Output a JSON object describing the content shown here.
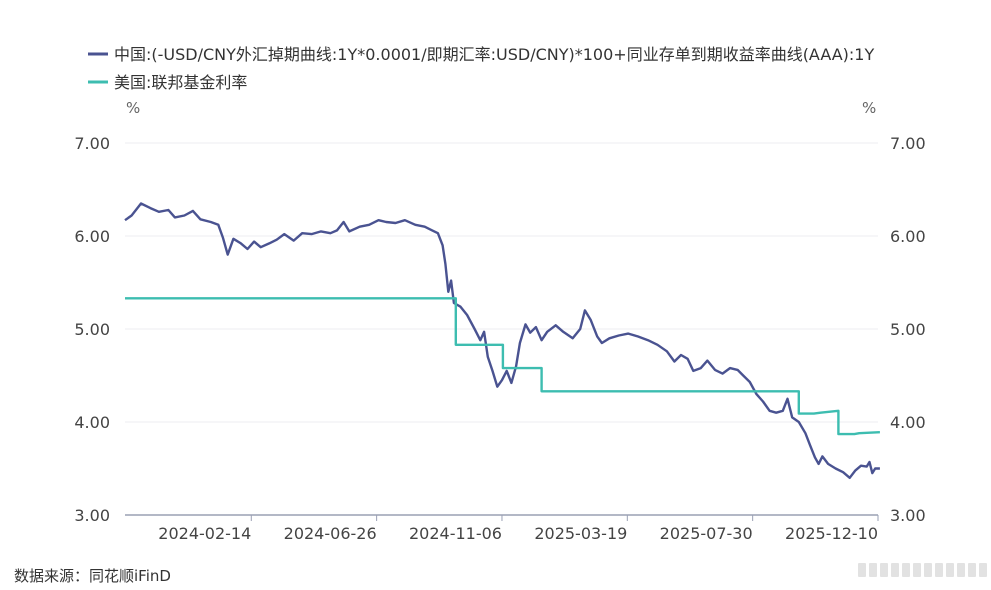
{
  "chart_data": {
    "type": "line",
    "legend_position": "top-left",
    "grid": true,
    "left_unit": "%",
    "right_unit": "%",
    "ylim": [
      3.0,
      7.0
    ],
    "yticks": [
      "3.00",
      "4.00",
      "5.00",
      "6.00",
      "7.00"
    ],
    "x_range": [
      "2023-10-03",
      "2025-12-10"
    ],
    "xticks": [
      "2024-02-14",
      "2024-06-26",
      "2024-11-06",
      "2025-03-19",
      "2025-07-30",
      "2025-12-10"
    ],
    "series": [
      {
        "name": "中国:(-USD/CNY外汇掉期曲线:1Y*0.0001/即期汇率:USD/CNY)*100+同业存单到期收益率曲线(AAA):1Y",
        "color": "#4a5391",
        "points": [
          [
            "2023-10-03",
            6.17
          ],
          [
            "2023-10-10",
            6.22
          ],
          [
            "2023-10-20",
            6.35
          ],
          [
            "2023-10-30",
            6.3
          ],
          [
            "2023-11-08",
            6.26
          ],
          [
            "2023-11-18",
            6.28
          ],
          [
            "2023-11-25",
            6.2
          ],
          [
            "2023-12-05",
            6.22
          ],
          [
            "2023-12-14",
            6.27
          ],
          [
            "2023-12-22",
            6.18
          ],
          [
            "2024-01-02",
            6.15
          ],
          [
            "2024-01-10",
            6.12
          ],
          [
            "2024-01-15",
            5.98
          ],
          [
            "2024-01-20",
            5.8
          ],
          [
            "2024-01-26",
            5.97
          ],
          [
            "2024-02-03",
            5.92
          ],
          [
            "2024-02-10",
            5.86
          ],
          [
            "2024-02-17",
            5.94
          ],
          [
            "2024-02-24",
            5.88
          ],
          [
            "2024-03-04",
            5.92
          ],
          [
            "2024-03-12",
            5.96
          ],
          [
            "2024-03-20",
            6.02
          ],
          [
            "2024-03-30",
            5.95
          ],
          [
            "2024-04-08",
            6.03
          ],
          [
            "2024-04-18",
            6.02
          ],
          [
            "2024-04-28",
            6.05
          ],
          [
            "2024-05-08",
            6.03
          ],
          [
            "2024-05-15",
            6.06
          ],
          [
            "2024-05-22",
            6.15
          ],
          [
            "2024-05-28",
            6.05
          ],
          [
            "2024-06-08",
            6.1
          ],
          [
            "2024-06-18",
            6.12
          ],
          [
            "2024-06-28",
            6.17
          ],
          [
            "2024-07-06",
            6.15
          ],
          [
            "2024-07-16",
            6.14
          ],
          [
            "2024-07-26",
            6.17
          ],
          [
            "2024-08-06",
            6.12
          ],
          [
            "2024-08-16",
            6.1
          ],
          [
            "2024-08-24",
            6.06
          ],
          [
            "2024-08-30",
            6.03
          ],
          [
            "2024-09-04",
            5.9
          ],
          [
            "2024-09-07",
            5.7
          ],
          [
            "2024-09-10",
            5.4
          ],
          [
            "2024-09-13",
            5.52
          ],
          [
            "2024-09-16",
            5.28
          ],
          [
            "2024-09-23",
            5.24
          ],
          [
            "2024-09-30",
            5.15
          ],
          [
            "2024-10-08",
            5.0
          ],
          [
            "2024-10-14",
            4.88
          ],
          [
            "2024-10-18",
            4.97
          ],
          [
            "2024-10-22",
            4.7
          ],
          [
            "2024-10-27",
            4.55
          ],
          [
            "2024-11-01",
            4.38
          ],
          [
            "2024-11-06",
            4.45
          ],
          [
            "2024-11-11",
            4.55
          ],
          [
            "2024-11-16",
            4.42
          ],
          [
            "2024-11-21",
            4.6
          ],
          [
            "2024-11-25",
            4.85
          ],
          [
            "2024-12-01",
            5.05
          ],
          [
            "2024-12-06",
            4.96
          ],
          [
            "2024-12-12",
            5.02
          ],
          [
            "2024-12-18",
            4.88
          ],
          [
            "2024-12-24",
            4.97
          ],
          [
            "2025-01-02",
            5.04
          ],
          [
            "2025-01-10",
            4.97
          ],
          [
            "2025-01-20",
            4.9
          ],
          [
            "2025-01-28",
            5.0
          ],
          [
            "2025-02-02",
            5.2
          ],
          [
            "2025-02-08",
            5.1
          ],
          [
            "2025-02-15",
            4.92
          ],
          [
            "2025-02-20",
            4.85
          ],
          [
            "2025-02-28",
            4.9
          ],
          [
            "2025-03-10",
            4.93
          ],
          [
            "2025-03-20",
            4.95
          ],
          [
            "2025-03-30",
            4.92
          ],
          [
            "2025-04-10",
            4.88
          ],
          [
            "2025-04-20",
            4.83
          ],
          [
            "2025-04-30",
            4.76
          ],
          [
            "2025-05-08",
            4.65
          ],
          [
            "2025-05-15",
            4.72
          ],
          [
            "2025-05-22",
            4.68
          ],
          [
            "2025-05-28",
            4.55
          ],
          [
            "2025-06-05",
            4.58
          ],
          [
            "2025-06-12",
            4.66
          ],
          [
            "2025-06-20",
            4.56
          ],
          [
            "2025-06-28",
            4.52
          ],
          [
            "2025-07-06",
            4.58
          ],
          [
            "2025-07-14",
            4.56
          ],
          [
            "2025-07-20",
            4.5
          ],
          [
            "2025-07-27",
            4.43
          ],
          [
            "2025-08-03",
            4.3
          ],
          [
            "2025-08-10",
            4.22
          ],
          [
            "2025-08-17",
            4.12
          ],
          [
            "2025-08-24",
            4.1
          ],
          [
            "2025-08-31",
            4.12
          ],
          [
            "2025-09-05",
            4.25
          ],
          [
            "2025-09-10",
            4.05
          ],
          [
            "2025-09-17",
            4.0
          ],
          [
            "2025-09-24",
            3.88
          ],
          [
            "2025-09-29",
            3.75
          ],
          [
            "2025-10-04",
            3.62
          ],
          [
            "2025-10-08",
            3.55
          ],
          [
            "2025-10-12",
            3.63
          ],
          [
            "2025-10-18",
            3.55
          ],
          [
            "2025-10-26",
            3.5
          ],
          [
            "2025-11-03",
            3.46
          ],
          [
            "2025-11-10",
            3.4
          ],
          [
            "2025-11-16",
            3.48
          ],
          [
            "2025-11-22",
            3.53
          ],
          [
            "2025-11-28",
            3.52
          ],
          [
            "2025-12-01",
            3.57
          ],
          [
            "2025-12-04",
            3.45
          ],
          [
            "2025-12-07",
            3.5
          ],
          [
            "2025-12-12",
            3.5
          ]
        ]
      },
      {
        "name": "美国:联邦基金利率",
        "color": "#3dbdb0",
        "points": [
          [
            "2023-10-03",
            5.33
          ],
          [
            "2024-09-18",
            5.33
          ],
          [
            "2024-09-18",
            4.83
          ],
          [
            "2024-11-07",
            4.83
          ],
          [
            "2024-11-07",
            4.58
          ],
          [
            "2024-12-18",
            4.58
          ],
          [
            "2024-12-18",
            4.33
          ],
          [
            "2025-09-17",
            4.33
          ],
          [
            "2025-09-17",
            4.09
          ],
          [
            "2025-10-03",
            4.09
          ],
          [
            "2025-10-10",
            4.1
          ],
          [
            "2025-10-29",
            4.12
          ],
          [
            "2025-10-29",
            3.87
          ],
          [
            "2025-11-15",
            3.87
          ],
          [
            "2025-11-20",
            3.88
          ],
          [
            "2025-12-12",
            3.89
          ]
        ]
      }
    ]
  },
  "source_text": "数据来源：同花顺iFinD"
}
